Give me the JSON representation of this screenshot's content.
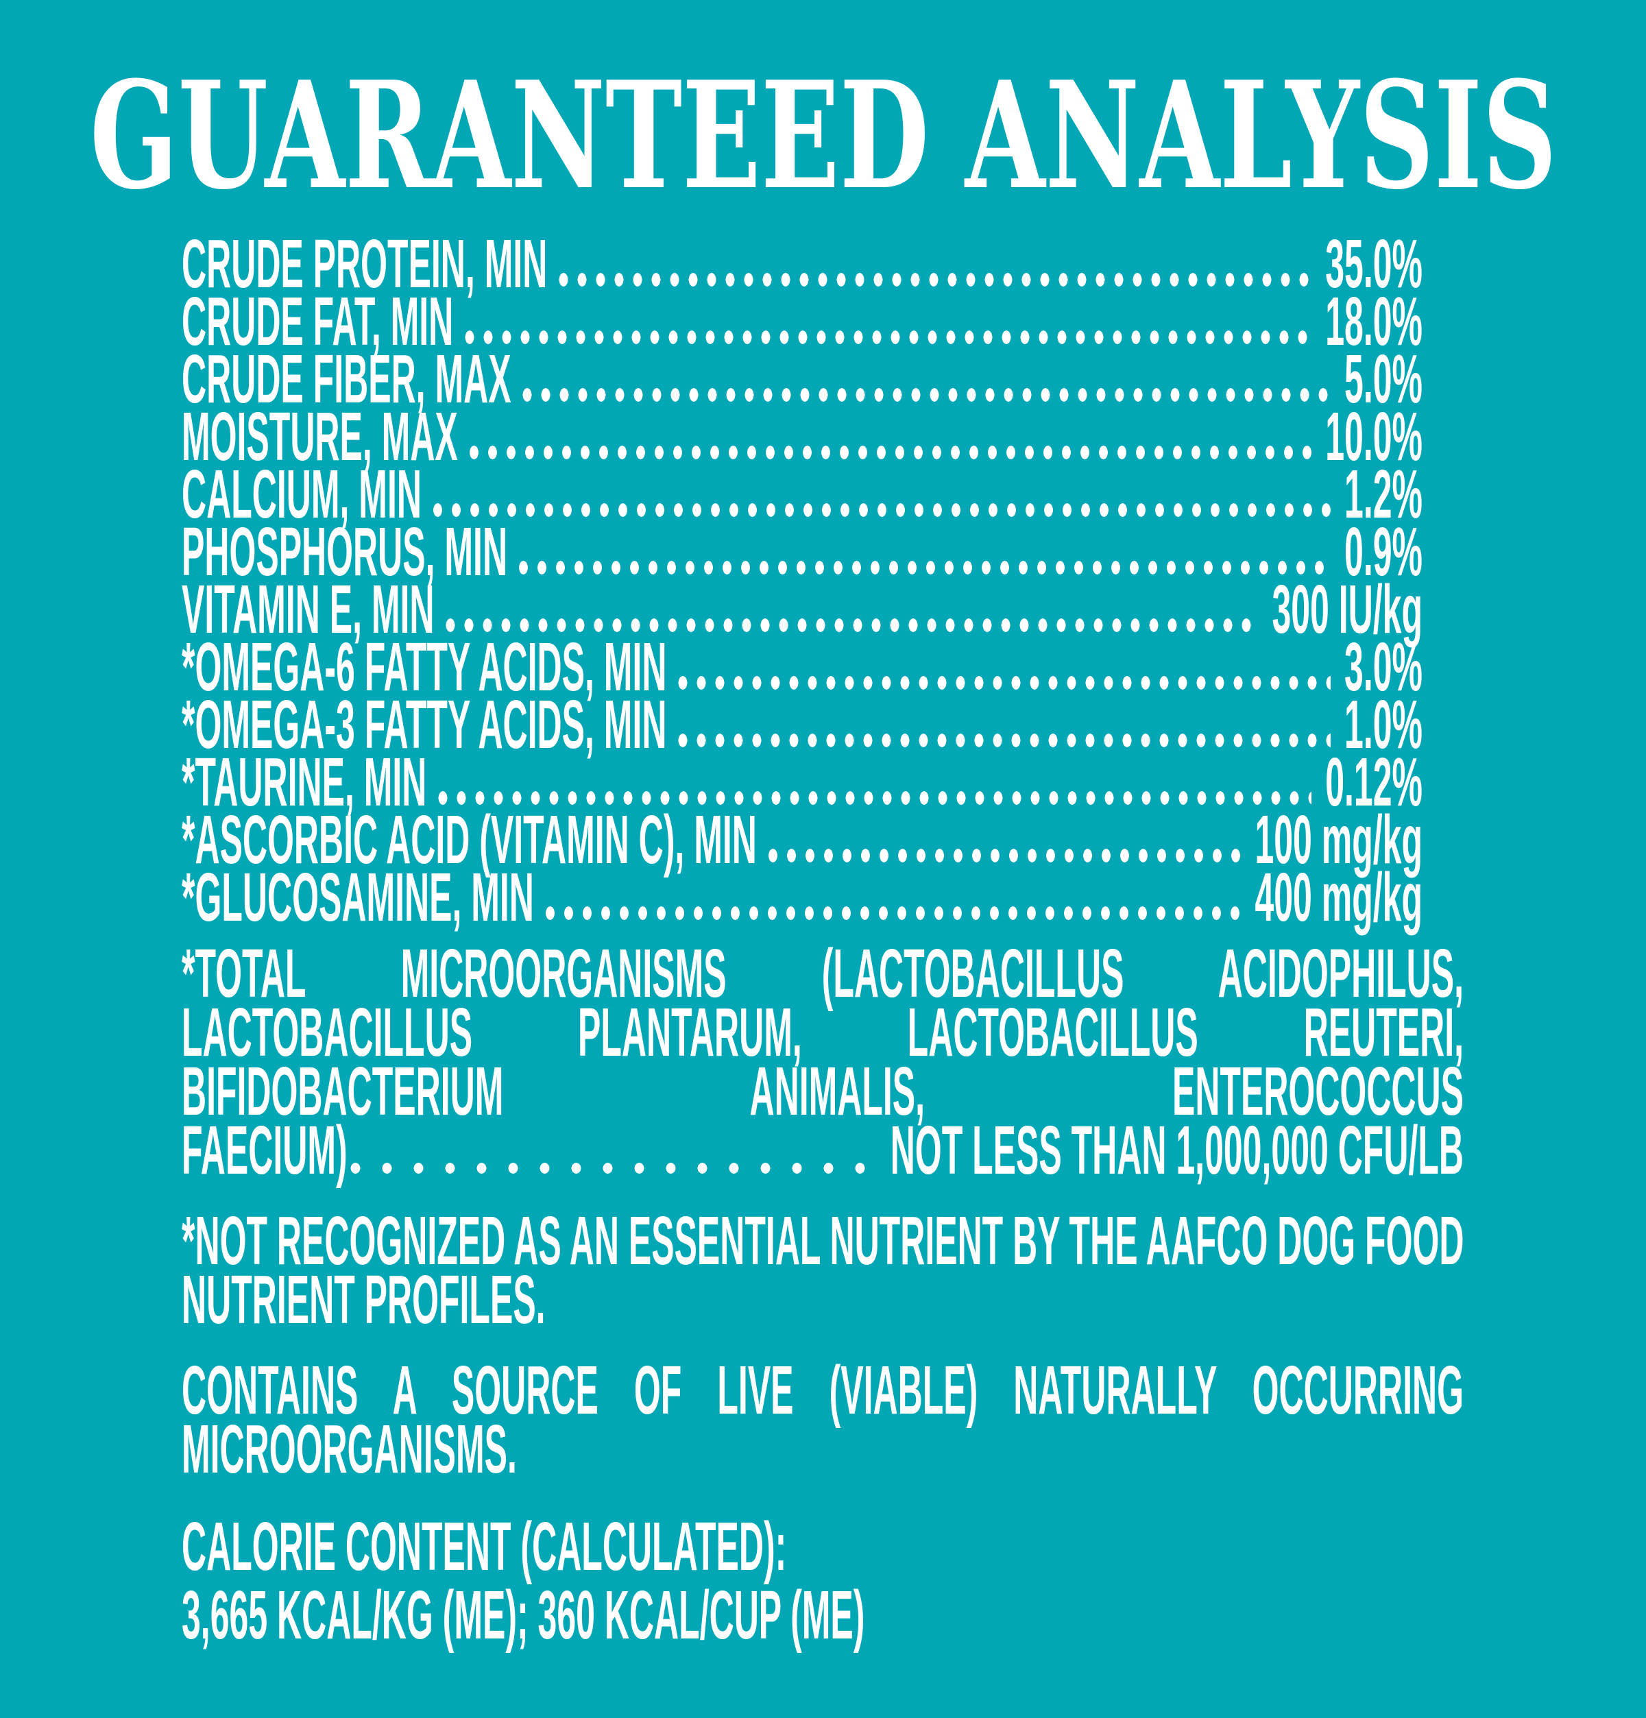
{
  "colors": {
    "background": "#02a7b6",
    "text": "#ffffff"
  },
  "title": "GUARANTEED ANALYSIS",
  "analysis": {
    "rows": [
      {
        "label": "CRUDE PROTEIN, MIN",
        "value": "35.0%"
      },
      {
        "label": "CRUDE FAT, MIN",
        "value": "18.0%"
      },
      {
        "label": "CRUDE FIBER, MAX",
        "value": "5.0%"
      },
      {
        "label": "MOISTURE, MAX",
        "value": "10.0%"
      },
      {
        "label": "CALCIUM, MIN",
        "value": "1.2%"
      },
      {
        "label": "PHOSPHORUS, MIN",
        "value": "0.9%"
      },
      {
        "label": "VITAMIN E, MIN",
        "value": "300 IU/kg"
      },
      {
        "label": "*OMEGA-6 FATTY ACIDS, MIN",
        "value": "3.0%"
      },
      {
        "label": "*OMEGA-3 FATTY ACIDS, MIN",
        "value": "1.0%"
      },
      {
        "label": "*TAURINE, MIN",
        "value": "0.12%"
      },
      {
        "label": "*ASCORBIC ACID (VITAMIN C), MIN",
        "value": "100 mg/kg"
      },
      {
        "label": "*GLUCOSAMINE, MIN",
        "value": "400 mg/kg"
      }
    ]
  },
  "microorganisms": {
    "line1": "*TOTAL MICROORGANISMS (LACTOBACILLUS ACIDOPHILUS,",
    "line2": "LACTOBACILLUS PLANTARUM, LACTOBACILLUS REUTERI,",
    "line3": "BIFIDOBACTERIUM ANIMALIS, ENTEROCOCCUS",
    "line4_left": "FAECIUM)",
    "line4_right": "NOT LESS THAN 1,000,000 CFU/LB"
  },
  "footnote": {
    "line1": "*NOT RECOGNIZED AS AN ESSENTIAL NUTRIENT BY THE AAFCO DOG FOOD",
    "line2": "NUTRIENT PROFILES."
  },
  "contains": {
    "line1": "CONTAINS A SOURCE OF LIVE (VIABLE) NATURALLY OCCURRING",
    "line2": "MICROORGANISMS."
  },
  "calorie": {
    "heading": "CALORIE CONTENT (CALCULATED):",
    "values": "3,665 KCAL/KG (ME); 360 KCAL/CUP (ME)"
  }
}
